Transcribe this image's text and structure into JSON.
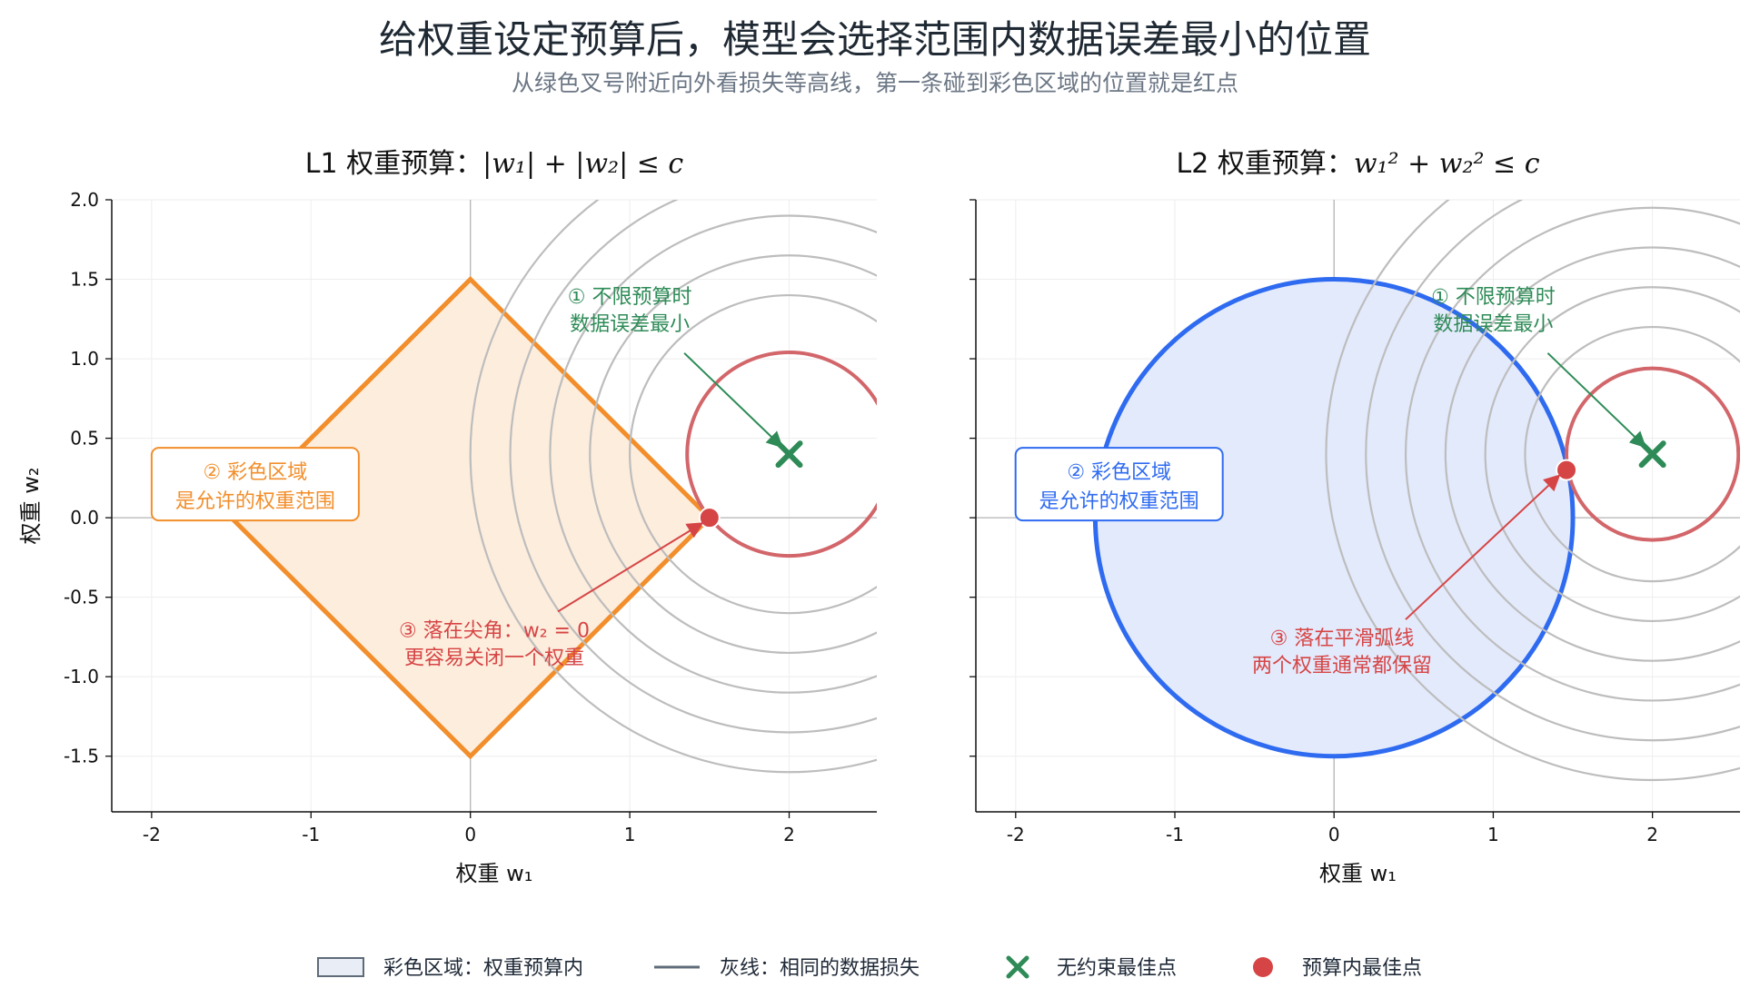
{
  "title": "给权重设定预算后，模型会选择范围内数据误差最小的位置",
  "subtitle": "从绿色叉号附近向外看损失等高线，第一条碰到彩色区域的位置就是红点",
  "colors": {
    "contour_gray": "#bdbdbd",
    "contour_red": "#d2666a",
    "unconstrained_green": "#2e8b57",
    "constrained_red": "#d64545",
    "l1_orange": "#f28e2b",
    "l1_fill": "#fdeddd",
    "l2_blue": "#2f6bf0",
    "l2_fill": "#e3eafc",
    "grid": "#eeeeee",
    "zero_line": "#b5b5b5"
  },
  "chart_data": [
    {
      "type": "scatter",
      "panel": "L1",
      "title_prefix": "L1 权重预算：",
      "title_math": "|w₁| + |w₂| ≤ c",
      "xlabel": "权重 w₁",
      "ylabel": "权重 w₂",
      "xlim": [
        -2.25,
        2.55
      ],
      "ylim": [
        -1.85,
        2.0
      ],
      "xticks": [
        -2,
        -1,
        0,
        1,
        2
      ],
      "xtick_labels": [
        "-2",
        "-1",
        "0",
        "1",
        "2"
      ],
      "yticks": [
        -1.5,
        -1.0,
        -0.5,
        0.0,
        0.5,
        1.0,
        1.5,
        2.0
      ],
      "ytick_labels": [
        "-1.5",
        "-1.0",
        "-0.5",
        "0.0",
        "0.5",
        "1.0",
        "1.5",
        "2.0"
      ],
      "grid": true,
      "constraint": {
        "shape": "diamond",
        "c": 1.5
      },
      "contour_center": [
        2.0,
        0.4
      ],
      "contour_radii": [
        0.64,
        1.0,
        1.25,
        1.5,
        1.75,
        2.0
      ],
      "unconstrained_optimum": [
        2.0,
        0.4
      ],
      "constrained_optimum": [
        1.5,
        0.0
      ],
      "annotations": {
        "optimum": {
          "lines": [
            "① 不限预算时",
            "数据误差最小"
          ],
          "text_at": [
            1.0,
            1.35
          ],
          "arrow_to": [
            1.98,
            0.4
          ]
        },
        "region": {
          "lines": [
            "② 彩色区域",
            "是允许的权重范围"
          ],
          "text_at": [
            -1.35,
            0.2
          ]
        },
        "corner": {
          "lines": [
            "③ 落在尖角：w₂ = 0",
            "更容易关闭一个权重"
          ],
          "text_at": [
            0.15,
            -0.75
          ],
          "arrow_to": [
            1.5,
            0.0
          ]
        }
      }
    },
    {
      "type": "scatter",
      "panel": "L2",
      "title_prefix": "L2 权重预算：",
      "title_math": "w₁² + w₂² ≤ c",
      "xlabel": "权重 w₁",
      "ylabel": "",
      "xlim": [
        -2.25,
        2.55
      ],
      "ylim": [
        -1.85,
        2.0
      ],
      "xticks": [
        -2,
        -1,
        0,
        1,
        2
      ],
      "xtick_labels": [
        "-2",
        "-1",
        "0",
        "1",
        "2"
      ],
      "yticks": [
        -1.5,
        -1.0,
        -0.5,
        0.0,
        0.5,
        1.0,
        1.5,
        2.0
      ],
      "grid": true,
      "constraint": {
        "shape": "circle",
        "c": 1.5
      },
      "contour_center": [
        2.0,
        0.4
      ],
      "contour_radii": [
        0.54,
        0.8,
        1.05,
        1.3,
        1.55,
        1.8,
        2.05
      ],
      "unconstrained_optimum": [
        2.0,
        0.4
      ],
      "constrained_optimum": [
        1.46,
        0.3
      ],
      "annotations": {
        "optimum": {
          "lines": [
            "① 不限预算时",
            "数据误差最小"
          ],
          "text_at": [
            1.0,
            1.35
          ],
          "arrow_to": [
            1.98,
            0.4
          ]
        },
        "region": {
          "lines": [
            "② 彩色区域",
            "是允许的权重范围"
          ],
          "text_at": [
            -1.35,
            0.2
          ]
        },
        "corner": {
          "lines": [
            "③ 落在平滑弧线",
            "两个权重通常都保留"
          ],
          "text_at": [
            0.05,
            -0.8
          ],
          "arrow_to": [
            1.46,
            0.3
          ]
        }
      }
    }
  ],
  "legend": {
    "placement": "bottom-center",
    "items": [
      {
        "name": "region",
        "label": "彩色区域：权重预算内"
      },
      {
        "name": "contour",
        "label": "灰线：相同的数据损失"
      },
      {
        "name": "unconstrained",
        "label": "无约束最佳点"
      },
      {
        "name": "constrained",
        "label": "预算内最佳点"
      }
    ]
  }
}
